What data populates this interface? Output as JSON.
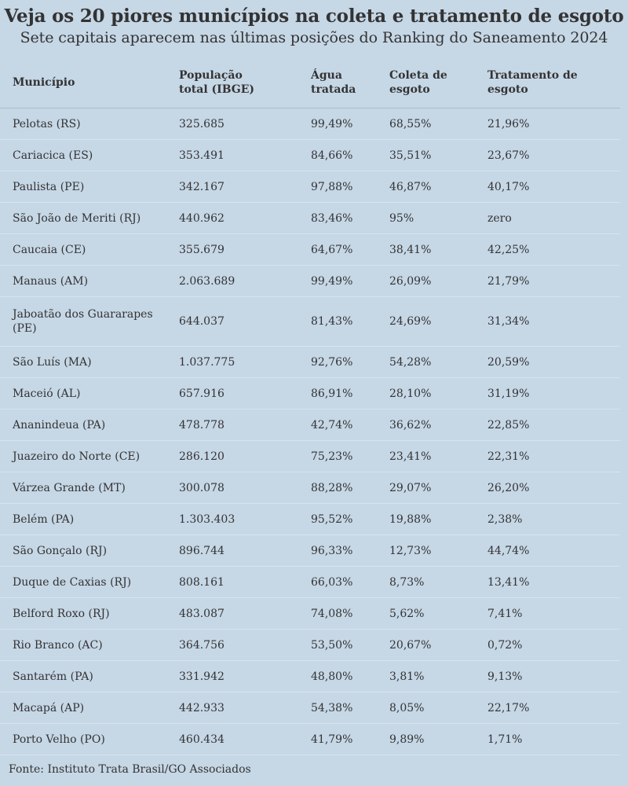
{
  "title": "Veja os 20 piores municípios na coleta e tratamento de esgoto",
  "subtitle": "Sete capitais aparecem nas últimas posições do Ranking do Saneamento 2024",
  "columns": [
    "Município",
    "População total (IBGE)",
    "Água tratada",
    "Coleta de esgoto",
    "Tratamento de esgoto"
  ],
  "rows": [
    [
      "Pelotas (RS)",
      "325.685",
      "99,49%",
      "68,55%",
      "21,96%"
    ],
    [
      "Cariacica (ES)",
      "353.491",
      "84,66%",
      "35,51%",
      "23,67%"
    ],
    [
      "Paulista (PE)",
      "342.167",
      "97,88%",
      "46,87%",
      "40,17%"
    ],
    [
      "São João de Meriti (RJ)",
      "440.962",
      "83,46%",
      "95%",
      "zero"
    ],
    [
      "Caucaia (CE)",
      "355.679",
      "64,67%",
      "38,41%",
      "42,25%"
    ],
    [
      "Manaus (AM)",
      "2.063.689",
      "99,49%",
      "26,09%",
      "21,79%"
    ],
    [
      "Jaboatão dos Guararapes (PE)",
      "644.037",
      "81,43%",
      "24,69%",
      "31,34%"
    ],
    [
      "São Luís (MA)",
      "1.037.775",
      "92,76%",
      "54,28%",
      "20,59%"
    ],
    [
      "Maceió (AL)",
      "657.916",
      "86,91%",
      "28,10%",
      "31,19%"
    ],
    [
      "Ananindeua (PA)",
      "478.778",
      "42,74%",
      "36,62%",
      "22,85%"
    ],
    [
      "Juazeiro do Norte (CE)",
      "286.120",
      "75,23%",
      "23,41%",
      "22,31%"
    ],
    [
      "Várzea Grande (MT)",
      "300.078",
      "88,28%",
      "29,07%",
      "26,20%"
    ],
    [
      "Belém (PA)",
      "1.303.403",
      "95,52%",
      "19,88%",
      "2,38%"
    ],
    [
      "São Gonçalo (RJ)",
      "896.744",
      "96,33%",
      "12,73%",
      "44,74%"
    ],
    [
      "Duque de Caxias (RJ)",
      "808.161",
      "66,03%",
      "8,73%",
      "13,41%"
    ],
    [
      "Belford Roxo (RJ)",
      "483.087",
      "74,08%",
      "5,62%",
      "7,41%"
    ],
    [
      "Rio Branco (AC)",
      "364.756",
      "53,50%",
      "20,67%",
      "0,72%"
    ],
    [
      "Santarém (PA)",
      "331.942",
      "48,80%",
      "3,81%",
      "9,13%"
    ],
    [
      "Macapá (AP)",
      "442.933",
      "54,38%",
      "8,05%",
      "22,17%"
    ],
    [
      "Porto Velho (PO)",
      "460.434",
      "41,79%",
      "9,89%",
      "1,71%"
    ]
  ],
  "source": "Fonte: Instituto Trata Brasil/GO Associados",
  "colors": {
    "background": "#c6d7e6",
    "text": "#333333",
    "rule": "#d9e4ee"
  }
}
